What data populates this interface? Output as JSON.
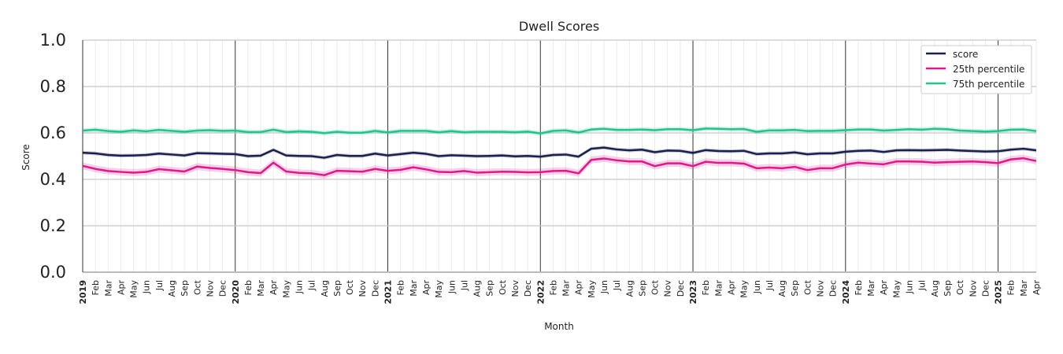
{
  "chart_data": {
    "type": "line",
    "title": "Dwell Scores",
    "xlabel": "Month",
    "ylabel": "Score",
    "ylim": [
      0,
      1
    ],
    "yticks": [
      "0.0",
      "0.2",
      "0.4",
      "0.6",
      "0.8",
      "1.0"
    ],
    "x": [
      "2019-01",
      "2019-02",
      "2019-03",
      "2019-04",
      "2019-05",
      "2019-06",
      "2019-07",
      "2019-08",
      "2019-09",
      "2019-10",
      "2019-11",
      "2019-12",
      "2020-01",
      "2020-02",
      "2020-03",
      "2020-04",
      "2020-05",
      "2020-06",
      "2020-07",
      "2020-08",
      "2020-09",
      "2020-10",
      "2020-11",
      "2020-12",
      "2021-01",
      "2021-02",
      "2021-03",
      "2021-04",
      "2021-05",
      "2021-06",
      "2021-07",
      "2021-08",
      "2021-09",
      "2021-10",
      "2021-11",
      "2021-12",
      "2022-01",
      "2022-02",
      "2022-03",
      "2022-04",
      "2022-05",
      "2022-06",
      "2022-07",
      "2022-08",
      "2022-09",
      "2022-10",
      "2022-11",
      "2022-12",
      "2023-01",
      "2023-02",
      "2023-03",
      "2023-04",
      "2023-05",
      "2023-06",
      "2023-07",
      "2023-08",
      "2023-09",
      "2023-10",
      "2023-11",
      "2023-12",
      "2024-01",
      "2024-02",
      "2024-03",
      "2024-04",
      "2024-05",
      "2024-06",
      "2024-07",
      "2024-08",
      "2024-09",
      "2024-10",
      "2024-11",
      "2024-12",
      "2025-01",
      "2025-02",
      "2025-03",
      "2025-04"
    ],
    "x_tick_labels": [
      "2019",
      "Feb",
      "Mar",
      "Apr",
      "May",
      "Jun",
      "Jul",
      "Aug",
      "Sep",
      "Oct",
      "Nov",
      "Dec",
      "2020",
      "Feb",
      "Mar",
      "Apr",
      "May",
      "Jun",
      "Jul",
      "Aug",
      "Sep",
      "Oct",
      "Nov",
      "Dec",
      "2021",
      "Feb",
      "Mar",
      "Apr",
      "May",
      "Jun",
      "Jul",
      "Aug",
      "Sep",
      "Oct",
      "Nov",
      "Dec",
      "2022",
      "Feb",
      "Mar",
      "Apr",
      "May",
      "Jun",
      "Jul",
      "Aug",
      "Sep",
      "Oct",
      "Nov",
      "Dec",
      "2023",
      "Feb",
      "Mar",
      "Apr",
      "May",
      "Jun",
      "Jul",
      "Aug",
      "Sep",
      "Oct",
      "Nov",
      "Dec",
      "2024",
      "Feb",
      "Mar",
      "Apr",
      "May",
      "Jun",
      "Jul",
      "Aug",
      "Sep",
      "Oct",
      "Nov",
      "Dec",
      "2025",
      "Feb",
      "Mar",
      "Apr"
    ],
    "grid": true,
    "legend": {
      "placement": "top-right"
    },
    "series": [
      {
        "name": "score",
        "color": "#1b1f4b",
        "values": [
          0.515,
          0.512,
          0.505,
          0.502,
          0.503,
          0.505,
          0.511,
          0.507,
          0.503,
          0.513,
          0.512,
          0.51,
          0.509,
          0.5,
          0.502,
          0.527,
          0.503,
          0.501,
          0.5,
          0.493,
          0.505,
          0.501,
          0.501,
          0.511,
          0.503,
          0.509,
          0.515,
          0.51,
          0.5,
          0.504,
          0.502,
          0.5,
          0.501,
          0.503,
          0.499,
          0.501,
          0.498,
          0.505,
          0.507,
          0.498,
          0.532,
          0.537,
          0.529,
          0.525,
          0.528,
          0.517,
          0.524,
          0.523,
          0.514,
          0.526,
          0.522,
          0.521,
          0.523,
          0.509,
          0.512,
          0.512,
          0.516,
          0.508,
          0.512,
          0.512,
          0.519,
          0.523,
          0.524,
          0.518,
          0.525,
          0.526,
          0.525,
          0.526,
          0.527,
          0.524,
          0.522,
          0.52,
          0.521,
          0.528,
          0.532,
          0.525
        ],
        "band": 0.008
      },
      {
        "name": "25th percentile",
        "color": "#e0198a",
        "values": [
          0.458,
          0.445,
          0.436,
          0.432,
          0.429,
          0.432,
          0.444,
          0.439,
          0.434,
          0.455,
          0.449,
          0.445,
          0.44,
          0.431,
          0.427,
          0.472,
          0.434,
          0.428,
          0.426,
          0.418,
          0.437,
          0.435,
          0.433,
          0.445,
          0.437,
          0.441,
          0.452,
          0.443,
          0.432,
          0.431,
          0.436,
          0.429,
          0.431,
          0.433,
          0.432,
          0.43,
          0.431,
          0.436,
          0.437,
          0.426,
          0.484,
          0.49,
          0.482,
          0.477,
          0.477,
          0.457,
          0.469,
          0.469,
          0.457,
          0.476,
          0.471,
          0.471,
          0.468,
          0.448,
          0.451,
          0.448,
          0.454,
          0.44,
          0.448,
          0.448,
          0.464,
          0.472,
          0.468,
          0.465,
          0.477,
          0.477,
          0.476,
          0.472,
          0.474,
          0.476,
          0.477,
          0.474,
          0.47,
          0.486,
          0.491,
          0.479
        ],
        "band": 0.015
      },
      {
        "name": "75th percentile",
        "color": "#21c48a",
        "values": [
          0.61,
          0.614,
          0.608,
          0.605,
          0.611,
          0.607,
          0.613,
          0.609,
          0.605,
          0.61,
          0.612,
          0.609,
          0.61,
          0.604,
          0.604,
          0.614,
          0.604,
          0.607,
          0.605,
          0.599,
          0.605,
          0.601,
          0.601,
          0.609,
          0.602,
          0.609,
          0.609,
          0.609,
          0.603,
          0.608,
          0.603,
          0.605,
          0.605,
          0.605,
          0.603,
          0.606,
          0.598,
          0.609,
          0.611,
          0.602,
          0.615,
          0.618,
          0.613,
          0.613,
          0.615,
          0.612,
          0.616,
          0.616,
          0.612,
          0.619,
          0.618,
          0.616,
          0.617,
          0.605,
          0.611,
          0.611,
          0.613,
          0.608,
          0.609,
          0.609,
          0.612,
          0.615,
          0.615,
          0.61,
          0.613,
          0.616,
          0.614,
          0.618,
          0.616,
          0.61,
          0.608,
          0.606,
          0.608,
          0.614,
          0.615,
          0.608
        ],
        "band": 0.01
      }
    ]
  }
}
